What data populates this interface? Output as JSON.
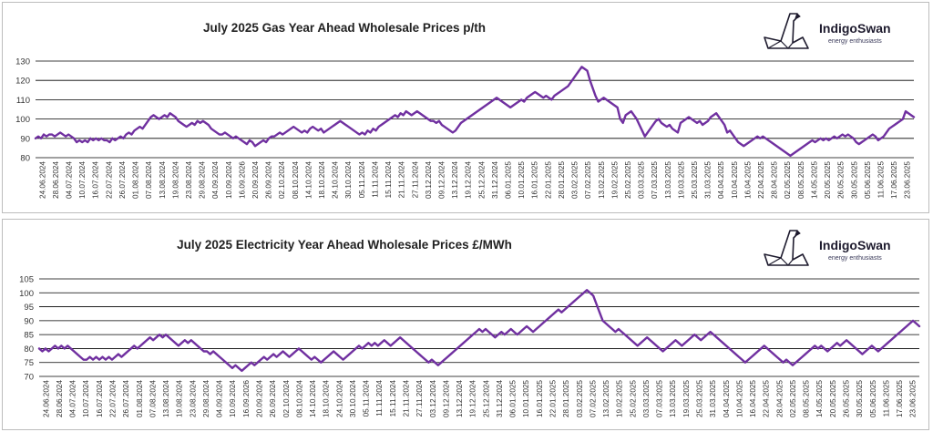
{
  "brand": {
    "name": "IndigoSwan",
    "tagline": "energy enthusiasts"
  },
  "colors": {
    "line": "#7030a0",
    "grid": "#000000",
    "text": "#333333"
  },
  "chart_data": [
    {
      "type": "line",
      "title": "July 2025 Gas Year Ahead Wholesale Prices p/th",
      "ylim": [
        80,
        130
      ],
      "yticks": [
        80,
        90,
        100,
        110,
        120,
        130
      ],
      "grid": true,
      "x_tick_labels": [
        "24.06.2024",
        "28.06.2024",
        "04.07.2024",
        "10.07.2024",
        "16.07.2024",
        "22.07.2024",
        "26.07.2024",
        "01.08.2024",
        "07.08.2024",
        "13.08.2024",
        "19.08.2024",
        "23.08.2024",
        "29.08.2024",
        "04.09.2024",
        "10.09.2024",
        "16.09.2026",
        "20.09.2024",
        "26.09.2024",
        "02.10.2024",
        "08.10.2024",
        "14.10.2024",
        "18.10.2024",
        "24.10.2024",
        "30.10.2024",
        "05.11.2024",
        "11.11.2024",
        "15.11.2024",
        "21.11.2024",
        "27.11.2024",
        "03.12.2024",
        "09.12.2024",
        "13.12.2024",
        "19.12.2024",
        "25.12.2024",
        "31.12.2024",
        "06.01.2025",
        "10.01.2025",
        "16.01.2025",
        "22.01.2025",
        "28.01.2025",
        "03.02.2025",
        "07.02.2025",
        "13.02.2025",
        "19.02.2025",
        "25.02.2025",
        "03.03.2025",
        "07.03.2025",
        "13.03.2025",
        "19.03.2025",
        "25.03.2025",
        "31.03.2025",
        "04.04.2025",
        "10.04.2025",
        "16.04.2025",
        "22.04.2025",
        "28.04.2025",
        "02.05.2025",
        "08.05.2025",
        "14.05.2025",
        "20.05.2025",
        "26.05.2025",
        "30.05.2025",
        "05.06.2025",
        "11.06.2025",
        "17.06.2025",
        "23.06.2025"
      ],
      "values": [
        90,
        91,
        90,
        92,
        91,
        92,
        92,
        91,
        92,
        93,
        92,
        91,
        92,
        91,
        90,
        88,
        89,
        88,
        89,
        88,
        90,
        89,
        90,
        89,
        90,
        89,
        89,
        88,
        90,
        89,
        90,
        91,
        90,
        92,
        93,
        92,
        94,
        95,
        96,
        95,
        97,
        99,
        101,
        102,
        101,
        100,
        101,
        102,
        101,
        103,
        102,
        101,
        99,
        98,
        97,
        96,
        97,
        98,
        97,
        99,
        98,
        99,
        98,
        97,
        95,
        94,
        93,
        92,
        92,
        93,
        92,
        91,
        90,
        91,
        90,
        89,
        88,
        87,
        89,
        88,
        86,
        87,
        88,
        89,
        88,
        90,
        91,
        91,
        92,
        93,
        92,
        93,
        94,
        95,
        96,
        95,
        94,
        93,
        94,
        93,
        95,
        96,
        95,
        94,
        95,
        93,
        94,
        95,
        96,
        97,
        98,
        99,
        98,
        97,
        96,
        95,
        94,
        93,
        92,
        93,
        92,
        94,
        93,
        95,
        94,
        96,
        97,
        98,
        99,
        100,
        101,
        102,
        101,
        103,
        102,
        104,
        103,
        102,
        103,
        104,
        103,
        102,
        101,
        100,
        99,
        99,
        98,
        99,
        97,
        96,
        95,
        94,
        93,
        94,
        96,
        98,
        99,
        100,
        101,
        102,
        103,
        104,
        105,
        106,
        107,
        108,
        109,
        110,
        111,
        110,
        109,
        108,
        107,
        106,
        107,
        108,
        109,
        110,
        109,
        111,
        112,
        113,
        114,
        113,
        112,
        111,
        112,
        111,
        110,
        112,
        113,
        114,
        115,
        116,
        117,
        119,
        121,
        123,
        125,
        127,
        126,
        125,
        120,
        116,
        112,
        109,
        110,
        111,
        110,
        109,
        108,
        107,
        106,
        100,
        98,
        102,
        103,
        104,
        102,
        100,
        97,
        94,
        91,
        93,
        95,
        97,
        99,
        100,
        98,
        97,
        96,
        97,
        95,
        94,
        93,
        98,
        99,
        100,
        101,
        100,
        99,
        98,
        99,
        97,
        98,
        99,
        101,
        102,
        103,
        101,
        99,
        97,
        93,
        94,
        92,
        90,
        88,
        87,
        86,
        87,
        88,
        89,
        90,
        91,
        90,
        91,
        90,
        89,
        88,
        87,
        86,
        85,
        84,
        83,
        82,
        81,
        82,
        83,
        84,
        85,
        86,
        87,
        88,
        89,
        88,
        89,
        90,
        89,
        90,
        89,
        90,
        91,
        90,
        91,
        92,
        91,
        92,
        91,
        90,
        88,
        87,
        88,
        89,
        90,
        91,
        92,
        91,
        89,
        90,
        91,
        93,
        95,
        96,
        97,
        98,
        99,
        100,
        104,
        103,
        102,
        101
      ]
    },
    {
      "type": "line",
      "title": "July 2025 Electricity Year Ahead Wholesale Prices £/MWh",
      "ylim": [
        70,
        105
      ],
      "yticks": [
        70,
        75,
        80,
        85,
        90,
        95,
        100,
        105
      ],
      "grid": true,
      "x_tick_labels": [
        "24.06.2024",
        "28.06.2024",
        "04.07.2024",
        "10.07.2024",
        "16.07.2024",
        "22.07.2024",
        "26.07.2024",
        "01.08.2024",
        "07.08.2024",
        "13.08.2024",
        "19.08.2024",
        "23.08.2024",
        "29.08.2024",
        "04.09.2024",
        "10.09.2024",
        "16.09.2026",
        "20.09.2024",
        "26.09.2024",
        "02.10.2024",
        "08.10.2024",
        "14.10.2024",
        "18.10.2024",
        "24.10.2024",
        "30.10.2024",
        "05.11.2024",
        "11.11.2024",
        "15.11.2024",
        "21.11.2024",
        "27.11.2024",
        "03.12.2024",
        "09.12.2024",
        "13.12.2024",
        "19.12.2024",
        "25.12.2024",
        "31.12.2024",
        "06.01.2025",
        "10.01.2025",
        "16.01.2025",
        "22.01.2025",
        "28.01.2025",
        "03.02.2025",
        "07.02.2025",
        "13.02.2025",
        "19.02.2025",
        "25.02.2025",
        "03.03.2025",
        "07.03.2025",
        "13.03.2025",
        "19.03.2025",
        "25.03.2025",
        "31.03.2025",
        "04.04.2025",
        "10.04.2025",
        "16.04.2025",
        "22.04.2025",
        "28.04.2025",
        "02.05.2025",
        "08.05.2025",
        "14.05.2025",
        "20.05.2025",
        "26.05.2025",
        "30.05.2025",
        "05.06.2025",
        "11.06.2025",
        "17.06.2025",
        "23.06.2025"
      ],
      "values": [
        80,
        79,
        80,
        79,
        80,
        81,
        80,
        81,
        80,
        81,
        80,
        79,
        78,
        77,
        76,
        76,
        77,
        76,
        77,
        76,
        77,
        76,
        77,
        76,
        77,
        78,
        77,
        78,
        79,
        80,
        81,
        80,
        81,
        82,
        83,
        84,
        83,
        84,
        85,
        84,
        85,
        84,
        83,
        82,
        81,
        82,
        83,
        82,
        83,
        82,
        81,
        80,
        79,
        79,
        78,
        79,
        78,
        77,
        76,
        75,
        74,
        73,
        74,
        73,
        72,
        73,
        74,
        75,
        74,
        75,
        76,
        77,
        76,
        77,
        78,
        77,
        78,
        79,
        78,
        77,
        78,
        79,
        80,
        79,
        78,
        77,
        76,
        77,
        76,
        75,
        76,
        77,
        78,
        79,
        78,
        77,
        76,
        77,
        78,
        79,
        80,
        81,
        80,
        81,
        82,
        81,
        82,
        81,
        82,
        83,
        82,
        81,
        82,
        83,
        84,
        83,
        82,
        81,
        80,
        79,
        78,
        77,
        76,
        75,
        76,
        75,
        74,
        75,
        76,
        77,
        78,
        79,
        80,
        81,
        82,
        83,
        84,
        85,
        86,
        87,
        86,
        87,
        86,
        85,
        84,
        85,
        86,
        85,
        86,
        87,
        86,
        85,
        86,
        87,
        88,
        87,
        86,
        87,
        88,
        89,
        90,
        91,
        92,
        93,
        94,
        93,
        94,
        95,
        96,
        97,
        98,
        99,
        100,
        101,
        100,
        99,
        96,
        93,
        90,
        89,
        88,
        87,
        86,
        87,
        86,
        85,
        84,
        83,
        82,
        81,
        82,
        83,
        84,
        83,
        82,
        81,
        80,
        79,
        80,
        81,
        82,
        83,
        82,
        81,
        82,
        83,
        84,
        85,
        84,
        83,
        84,
        85,
        86,
        85,
        84,
        83,
        82,
        81,
        80,
        79,
        78,
        77,
        76,
        75,
        76,
        77,
        78,
        79,
        80,
        81,
        80,
        79,
        78,
        77,
        76,
        75,
        76,
        75,
        74,
        75,
        76,
        77,
        78,
        79,
        80,
        81,
        80,
        81,
        80,
        79,
        80,
        81,
        82,
        81,
        82,
        83,
        82,
        81,
        80,
        79,
        78,
        79,
        80,
        81,
        80,
        79,
        80,
        81,
        82,
        83,
        84,
        85,
        86,
        87,
        88,
        89,
        90,
        89,
        88
      ]
    }
  ]
}
